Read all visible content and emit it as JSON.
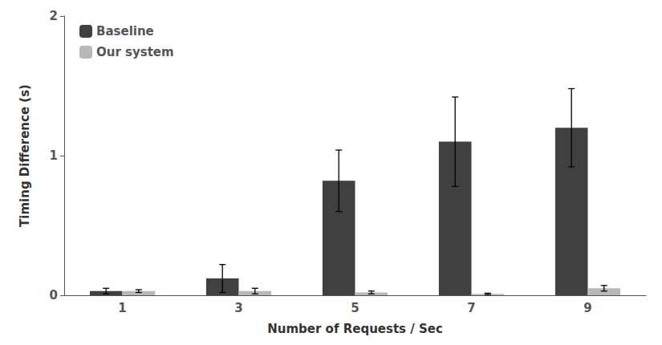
{
  "chart_data": {
    "type": "bar",
    "categories": [
      1,
      3,
      5,
      7,
      9
    ],
    "series": [
      {
        "name": "Baseline",
        "color": "#404040",
        "values": [
          0.03,
          0.12,
          0.82,
          1.1,
          1.2
        ],
        "errors": [
          0.02,
          0.1,
          0.22,
          0.32,
          0.28
        ]
      },
      {
        "name": "Our system",
        "color": "#b8b8b8",
        "values": [
          0.03,
          0.03,
          0.02,
          0.01,
          0.05
        ],
        "errors": [
          0.01,
          0.02,
          0.01,
          0.005,
          0.02
        ]
      }
    ],
    "xlabel": "Number of Requests / Sec",
    "ylabel": "Timing Difference (s)",
    "ylim": [
      0,
      2
    ],
    "yticks": [
      0,
      1,
      2
    ],
    "grid": false,
    "legend": "upper left"
  }
}
